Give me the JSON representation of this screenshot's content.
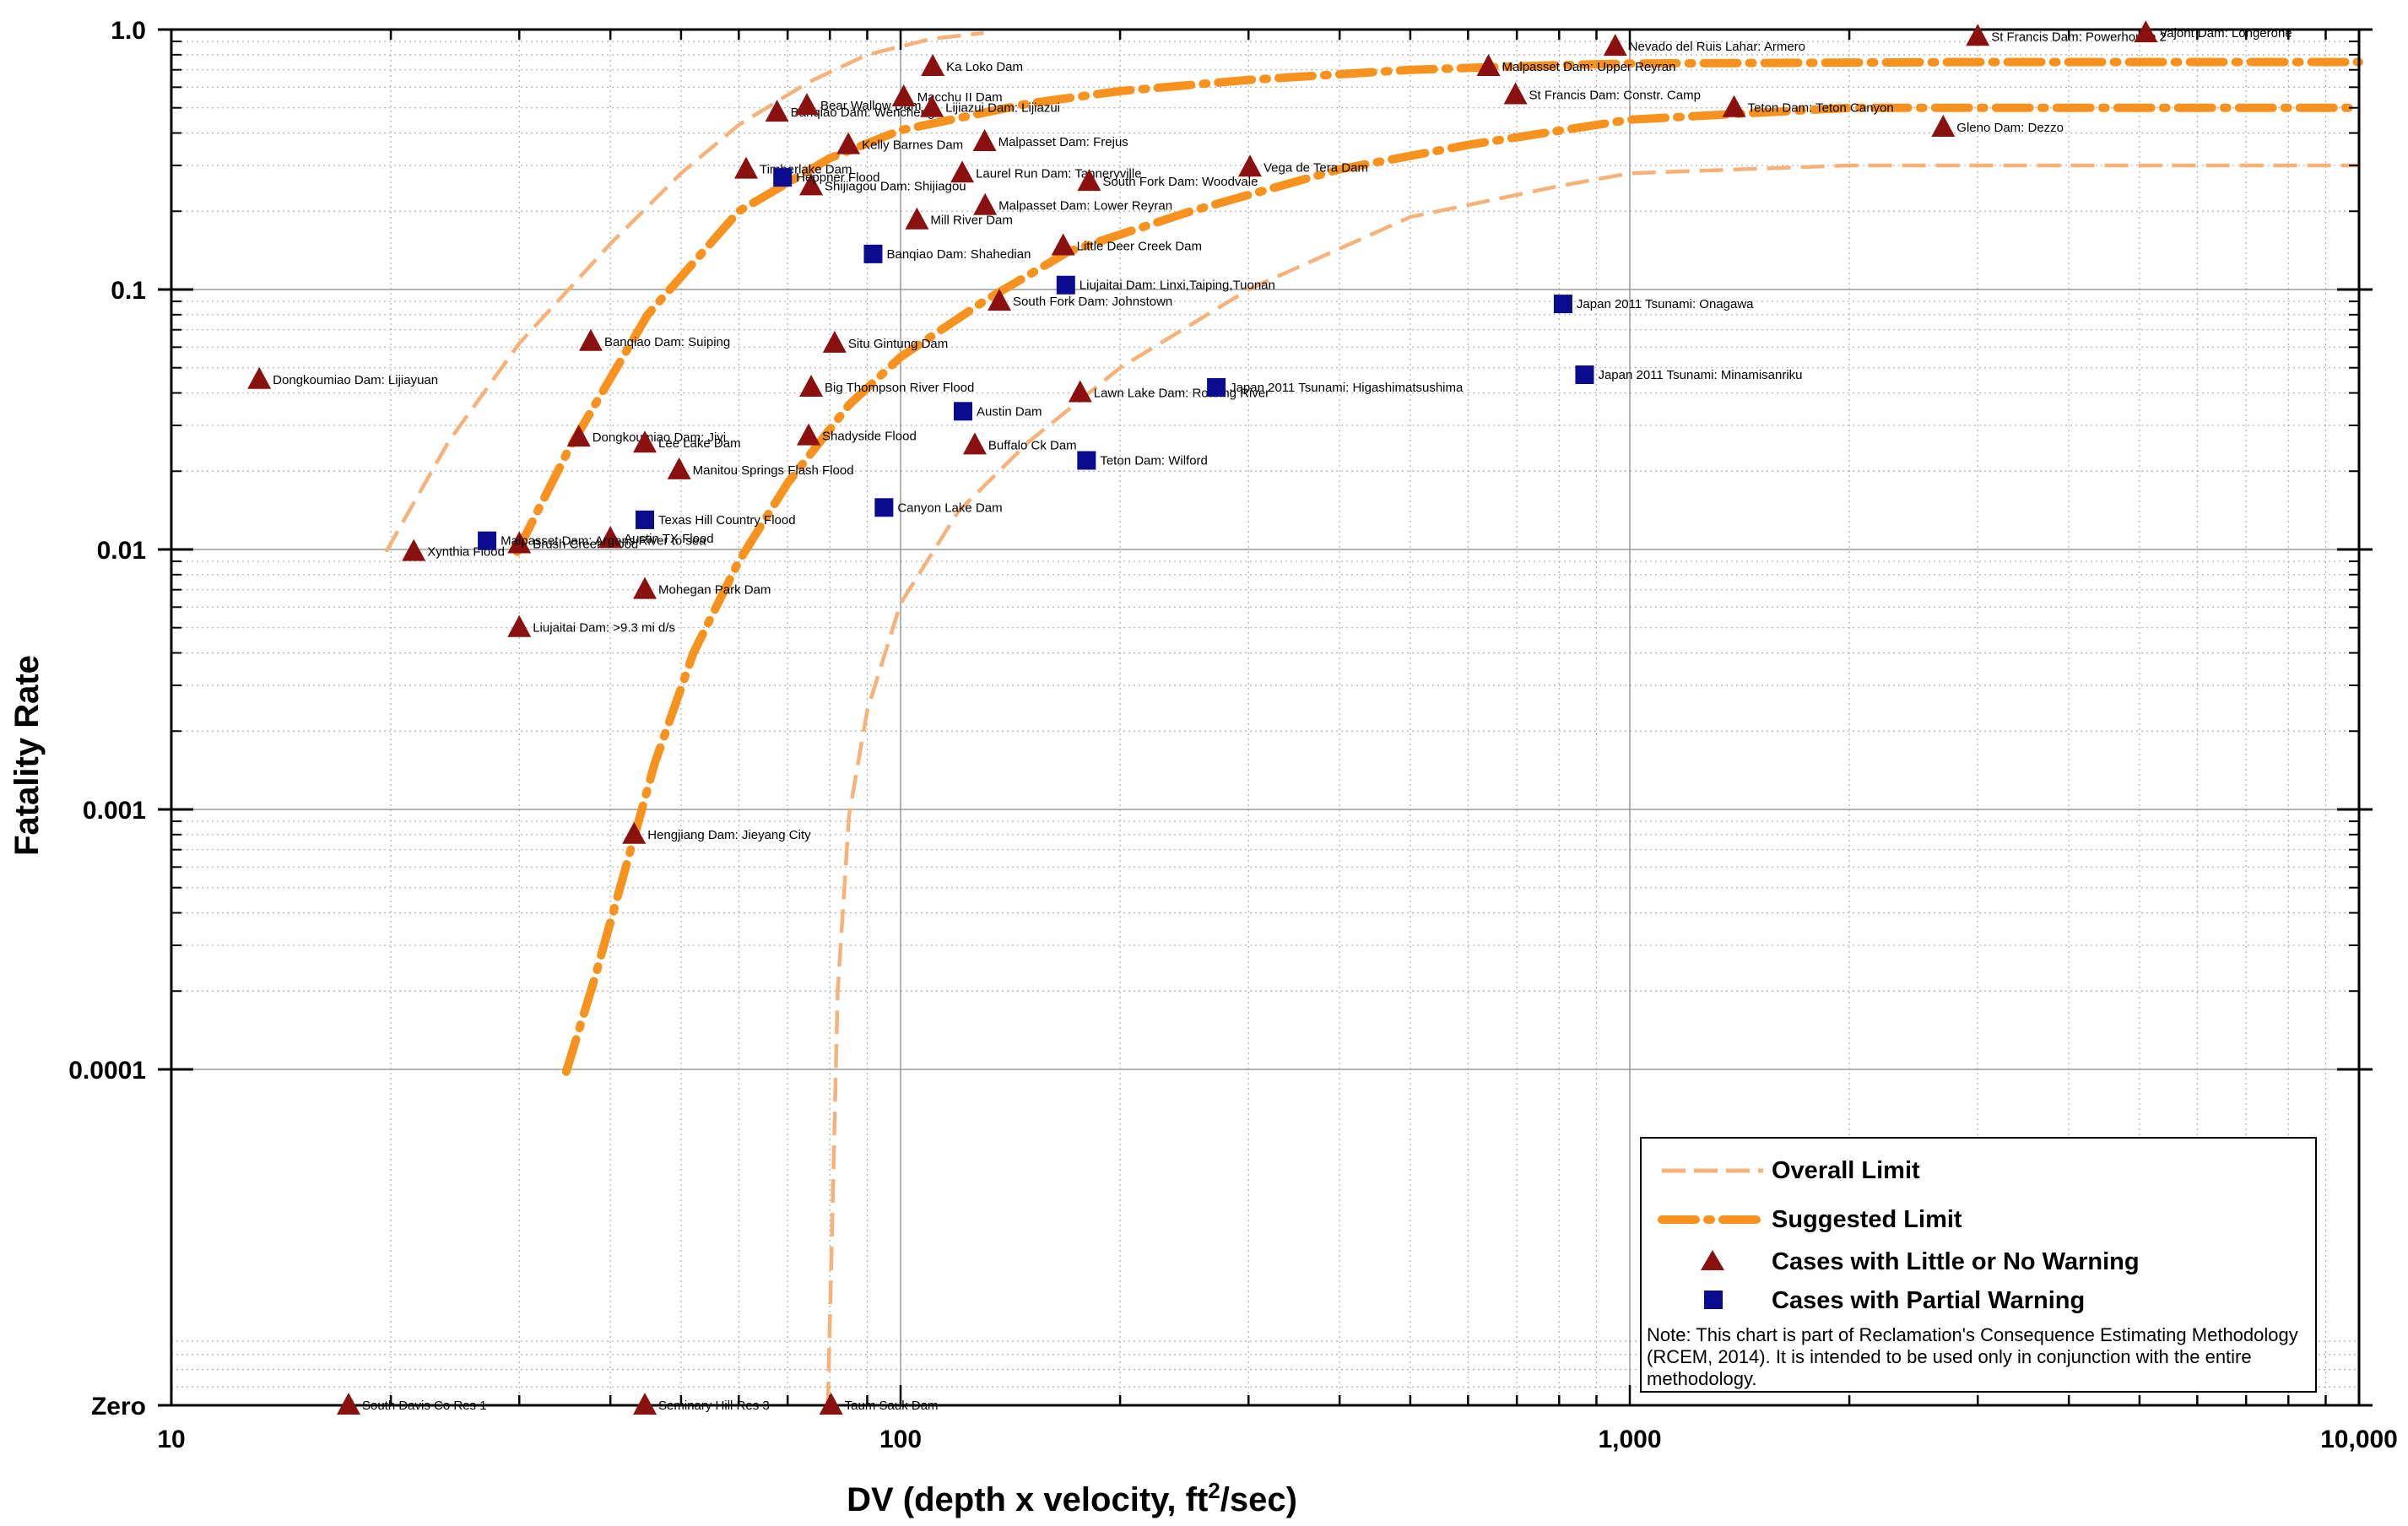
{
  "chart_data": {
    "type": "scatter",
    "xlabel": "DV (depth x velocity, ft",
    "xlabel_sup": "2",
    "xlabel_tail": "/sec)",
    "ylabel": "Fatality Rate",
    "xscale": "log",
    "yscale": "log",
    "xlim": [
      10,
      10000
    ],
    "ylim": [
      5.1e-06,
      1.0
    ],
    "x_ticks": [
      {
        "value": 10,
        "label": "10"
      },
      {
        "value": 100,
        "label": "100"
      },
      {
        "value": 1000,
        "label": "1,000"
      },
      {
        "value": 10000,
        "label": "10,000"
      }
    ],
    "y_ticks": [
      {
        "value": 1.0,
        "label": "1.0"
      },
      {
        "value": 0.1,
        "label": "0.1"
      },
      {
        "value": 0.01,
        "label": "0.01"
      },
      {
        "value": 0.001,
        "label": "0.001"
      },
      {
        "value": 0.0001,
        "label": "0.0001"
      },
      {
        "value": 5.1e-06,
        "label": "Zero"
      }
    ],
    "grid": true,
    "legend_position": "bottom-right",
    "colors": {
      "overall": "#F7B27A",
      "suggested": "#F7921E",
      "little_warning": "#8B1010",
      "partial_warning": "#0B0B8F"
    },
    "legend": [
      {
        "key": "overall",
        "label": "Overall Limit"
      },
      {
        "key": "suggested",
        "label": "Suggested Limit"
      },
      {
        "key": "little_warning",
        "label": "Cases with Little or No Warning"
      },
      {
        "key": "partial_warning",
        "label": "Cases with Partial Warning"
      }
    ],
    "note": "Note:  This chart is part of Reclamation's Consequence Estimating Methodology (RCEM, 2014).  It is intended to be used only in conjunction with the entire methodology.",
    "series": [
      {
        "key": "little_warning",
        "name": "Cases with Little or No Warning",
        "points": [
          {
            "x": 13.2,
            "y": 0.045,
            "label": "Dongkoumiao Dam: Lijiayuan"
          },
          {
            "x": 21.5,
            "y": 0.0098,
            "label": "Xynthia Flood"
          },
          {
            "x": 30,
            "y": 0.0105,
            "label": "Brush Creek Flood"
          },
          {
            "x": 30,
            "y": 0.005,
            "label": "Liujaitai Dam: >9.3 mi d/s"
          },
          {
            "x": 36.2,
            "y": 0.027,
            "label": "Dongkoumiao Dam: Jiyi"
          },
          {
            "x": 37.6,
            "y": 0.063,
            "label": "Banqiao Dam: Suiping"
          },
          {
            "x": 40,
            "y": 0.011,
            "label": "Austin TX Flood"
          },
          {
            "x": 43.1,
            "y": 0.0008,
            "label": "Hengjiang Dam: Jieyang City"
          },
          {
            "x": 44.6,
            "y": 0.0256,
            "label": "Lee Lake Dam"
          },
          {
            "x": 44.6,
            "y": 0.007,
            "label": "Mohegan Park Dam"
          },
          {
            "x": 49.7,
            "y": 0.0202,
            "label": "Manitou Springs Flash Flood"
          },
          {
            "x": 61.4,
            "y": 0.29,
            "label": "Timberlake Dam"
          },
          {
            "x": 67.7,
            "y": 0.48,
            "label": "Banqiao Dam: Wencheng"
          },
          {
            "x": 74.4,
            "y": 0.51,
            "label": "Bear Wallow Dam"
          },
          {
            "x": 75.4,
            "y": 0.25,
            "label": "Shijiagou Dam: Shijiagou"
          },
          {
            "x": 75.4,
            "y": 0.042,
            "label": "Big Thompson River Flood"
          },
          {
            "x": 74.8,
            "y": 0.0273,
            "label": "Shadyside Flood"
          },
          {
            "x": 81.2,
            "y": 0.062,
            "label": "Situ Gintung Dam"
          },
          {
            "x": 84.8,
            "y": 0.36,
            "label": "Kelly Barnes Dam"
          },
          {
            "x": 101,
            "y": 0.55,
            "label": "Macchu II Dam"
          },
          {
            "x": 105.3,
            "y": 0.185,
            "label": "Mill River Dam"
          },
          {
            "x": 110.7,
            "y": 0.72,
            "label": "Ka Loko Dam"
          },
          {
            "x": 110.4,
            "y": 0.5,
            "label": "Lijiazui Dam: Lijiazui"
          },
          {
            "x": 121.5,
            "y": 0.28,
            "label": "Laurel Run Dam: Tanneryville"
          },
          {
            "x": 126.4,
            "y": 0.0252,
            "label": "Buffalo Ck Dam"
          },
          {
            "x": 130.4,
            "y": 0.37,
            "label": "Malpasset Dam: Frejus"
          },
          {
            "x": 130.6,
            "y": 0.21,
            "label": "Malpasset Dam: Lower Reyran"
          },
          {
            "x": 136.6,
            "y": 0.09,
            "label": "South Fork Dam: Johnstown"
          },
          {
            "x": 167.1,
            "y": 0.147,
            "label": "Little Deer Creek Dam"
          },
          {
            "x": 176.3,
            "y": 0.04,
            "label": "Lawn Lake Dam: Roaring River"
          },
          {
            "x": 181.4,
            "y": 0.26,
            "label": "South Fork Dam: Woodvale"
          },
          {
            "x": 301.4,
            "y": 0.295,
            "label": "Vega de Tera Dam"
          },
          {
            "x": 640,
            "y": 0.72,
            "label": "Malpasset Dam: Upper Reyran"
          },
          {
            "x": 697,
            "y": 0.56,
            "label": "St Francis Dam: Constr. Camp"
          },
          {
            "x": 955,
            "y": 0.86,
            "label": "Nevado del Ruis Lahar: Armero"
          },
          {
            "x": 1390,
            "y": 0.5,
            "label": "Teton Dam: Teton Canyon"
          },
          {
            "x": 2690,
            "y": 0.42,
            "label": "Gleno Dam: Dezzo"
          },
          {
            "x": 3000,
            "y": 0.94,
            "label": "St Francis Dam: Powerhouse 2"
          },
          {
            "x": 5100,
            "y": 0.97,
            "label": "Vajont Dam: Longerone"
          },
          {
            "x": 17.5,
            "y": 5.1e-06,
            "label": "South Davis Co Res 1"
          },
          {
            "x": 44.6,
            "y": 5.1e-06,
            "label": "Seminary Hill Res 3"
          },
          {
            "x": 80.3,
            "y": 5.1e-06,
            "label": "Taum Sauk Dam"
          }
        ]
      },
      {
        "key": "partial_warning",
        "name": "Cases with Partial Warning",
        "points": [
          {
            "x": 27.1,
            "y": 0.0108,
            "label": "Malpasset Dam: Argens River to sea"
          },
          {
            "x": 44.6,
            "y": 0.013,
            "label": "Texas Hill Country Flood"
          },
          {
            "x": 68.9,
            "y": 0.27,
            "label": "Heppner Flood"
          },
          {
            "x": 91.7,
            "y": 0.137,
            "label": "Banqiao Dam: Shahedian"
          },
          {
            "x": 94.9,
            "y": 0.0145,
            "label": "Canyon Lake Dam"
          },
          {
            "x": 121.8,
            "y": 0.034,
            "label": "Austin Dam"
          },
          {
            "x": 168.5,
            "y": 0.104,
            "label": "Liujaitai Dam: Linxi,Taiping,Tuonan"
          },
          {
            "x": 179.9,
            "y": 0.022,
            "label": "Teton Dam: Wilford"
          },
          {
            "x": 271,
            "y": 0.042,
            "label": "Japan 2011 Tsunami: Higashimatsushima"
          },
          {
            "x": 810,
            "y": 0.088,
            "label": "Japan 2011 Tsunami: Onagawa"
          },
          {
            "x": 867,
            "y": 0.047,
            "label": "Japan 2011 Tsunami: Minamisanriku"
          }
        ]
      }
    ],
    "limit_curves": [
      {
        "key": "overall",
        "points": [
          [
            19.7,
            0.0098
          ],
          [
            24,
            0.026
          ],
          [
            30,
            0.062
          ],
          [
            40,
            0.15
          ],
          [
            50,
            0.28
          ],
          [
            60,
            0.43
          ],
          [
            75,
            0.63
          ],
          [
            90,
            0.8
          ],
          [
            110,
            0.92
          ],
          [
            130,
            0.97
          ]
        ]
      },
      {
        "key": "suggested",
        "points": [
          [
            29.8,
            0.0098
          ],
          [
            35,
            0.024
          ],
          [
            45,
            0.08
          ],
          [
            60,
            0.2
          ],
          [
            80,
            0.32
          ],
          [
            100,
            0.41
          ],
          [
            150,
            0.52
          ],
          [
            200,
            0.58
          ],
          [
            300,
            0.64
          ],
          [
            500,
            0.7
          ],
          [
            800,
            0.73
          ],
          [
            1000,
            0.74
          ],
          [
            3000,
            0.75
          ],
          [
            10000,
            0.75
          ]
        ]
      },
      {
        "key": "suggested",
        "points": [
          [
            34.8,
            9.8e-05
          ],
          [
            38,
            0.00022
          ],
          [
            42,
            0.0006
          ],
          [
            46,
            0.0015
          ],
          [
            52,
            0.004
          ],
          [
            60,
            0.009
          ],
          [
            70,
            0.018
          ],
          [
            85,
            0.036
          ],
          [
            100,
            0.055
          ],
          [
            130,
            0.09
          ],
          [
            170,
            0.14
          ],
          [
            250,
            0.2
          ],
          [
            400,
            0.29
          ],
          [
            600,
            0.36
          ],
          [
            1000,
            0.45
          ],
          [
            2000,
            0.5
          ],
          [
            10000,
            0.5
          ]
        ]
      },
      {
        "key": "overall",
        "points": [
          [
            79.5,
            5.1e-06
          ],
          [
            82,
            0.0002
          ],
          [
            85,
            0.00095
          ],
          [
            90,
            0.0024
          ],
          [
            100,
            0.0062
          ],
          [
            120,
            0.014
          ],
          [
            150,
            0.026
          ],
          [
            200,
            0.05
          ],
          [
            300,
            0.1
          ],
          [
            500,
            0.19
          ],
          [
            800,
            0.25
          ],
          [
            1000,
            0.28
          ],
          [
            2000,
            0.3
          ],
          [
            10000,
            0.3
          ]
        ]
      }
    ]
  }
}
